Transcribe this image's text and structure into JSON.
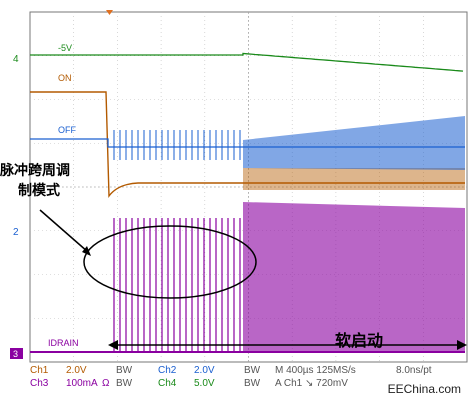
{
  "chart_data": {
    "type": "line",
    "title": "",
    "xlabel": "",
    "ylabel": "",
    "channel_markers": [
      "4",
      "2",
      "3"
    ],
    "trace_labels": {
      "neg5v": "-5V",
      "on": "ON",
      "off": "OFF",
      "idrain": "IDRAIN"
    },
    "annotations": {
      "pulse_mode_line1": "脉冲跨周调",
      "pulse_mode_line2": "制模式",
      "soft_start": "软启动"
    },
    "series": [
      {
        "name": "-5V",
        "color": "#1a8a1a"
      },
      {
        "name": "ON",
        "color": "#b35a00"
      },
      {
        "name": "OFF",
        "color": "#1a5fd0"
      },
      {
        "name": "IDRAIN",
        "color": "#8a00a0"
      }
    ]
  },
  "readout": {
    "ch1_name": "Ch1",
    "ch1_scale": "2.0V",
    "ch1_bw": "BW",
    "ch2_name": "Ch2",
    "ch2_scale": "2.0V",
    "ch2_bw": "BW",
    "ch3_name": "Ch3",
    "ch3_scale": "100mA",
    "ch3_ohm": "Ω",
    "ch3_bw": "BW",
    "ch4_name": "Ch4",
    "ch4_scale": "5.0V",
    "ch4_bw": "BW",
    "timebase": "M 400µs 125MS/s",
    "resolution": "8.0ns/pt",
    "trigger": "A Ch1 ↘ 720mV"
  },
  "watermark": "EEChina.com",
  "colors": {
    "grid": "#bfbfbf",
    "ch1": "#b35a00",
    "ch2": "#1a5fd0",
    "ch3": "#8a00a0",
    "ch4": "#1a8a1a"
  }
}
